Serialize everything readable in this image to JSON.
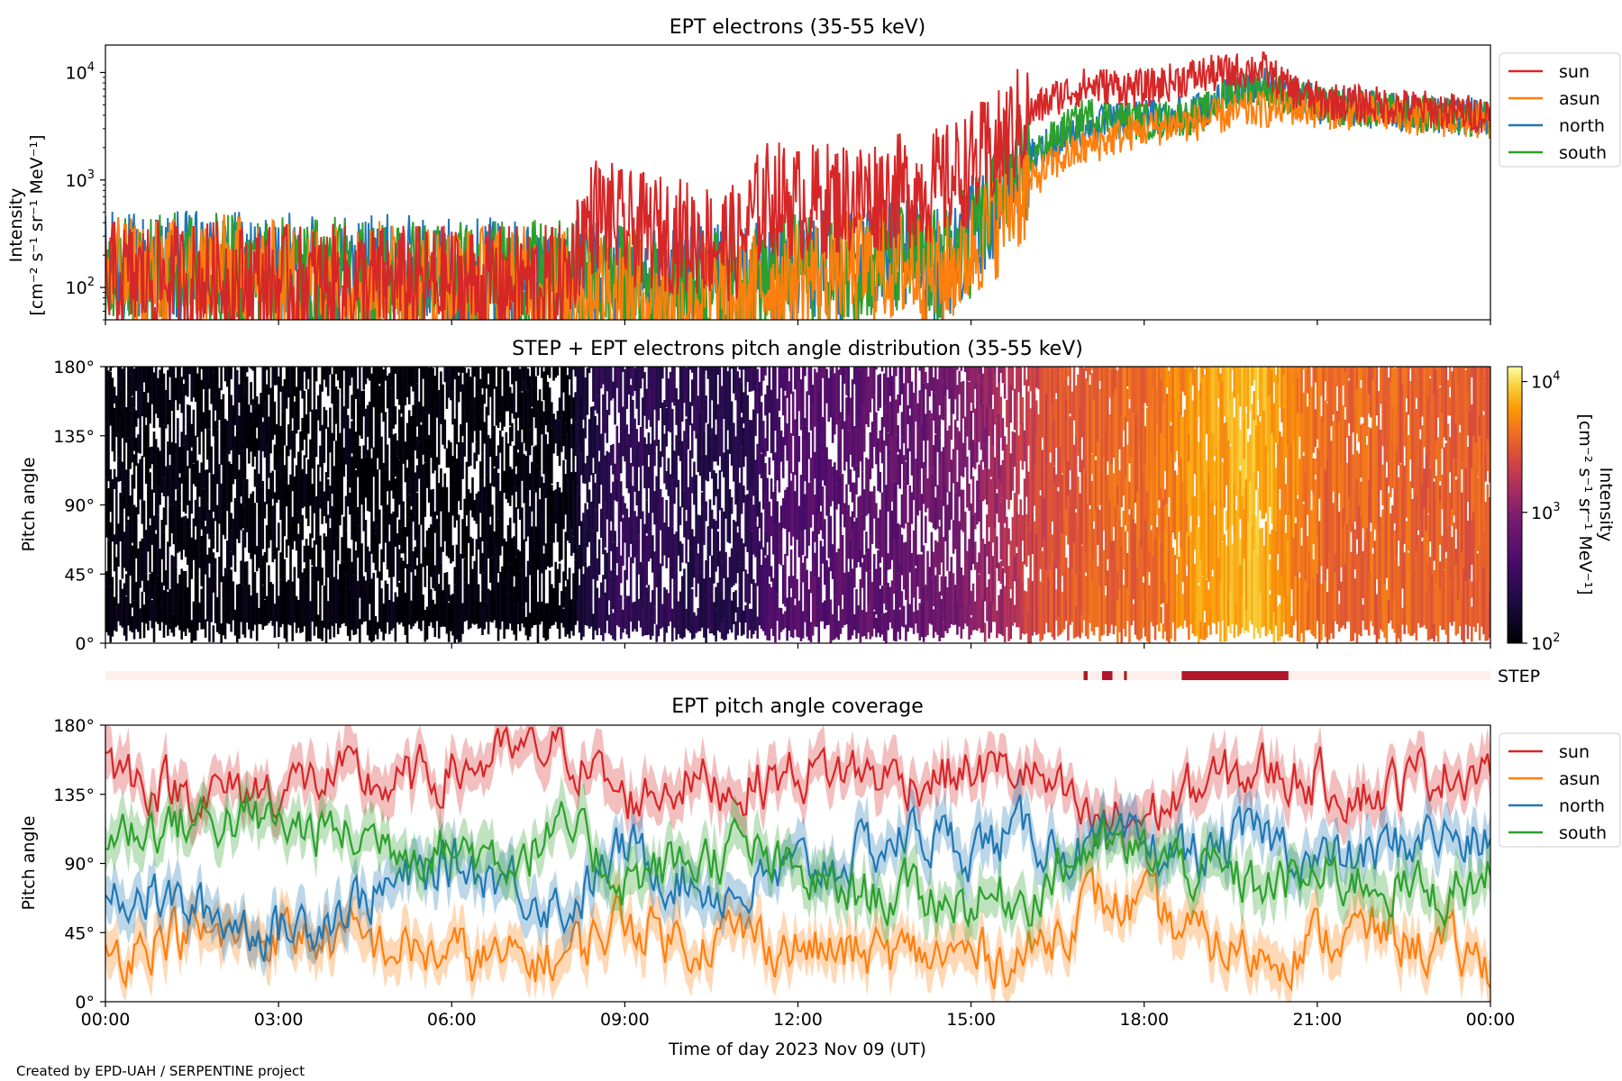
{
  "footer": "Created by EPD-UAH / SERPENTINE project",
  "xlabel": "Time of day 2023 Nov 09 (UT)",
  "x_ticks": [
    "00:00",
    "03:00",
    "06:00",
    "09:00",
    "12:00",
    "15:00",
    "18:00",
    "21:00",
    "00:00"
  ],
  "colors": {
    "sun": "#d62728",
    "asun": "#ff7f0e",
    "north": "#1f77b4",
    "south": "#2ca02c",
    "step_bar": "#b2182b",
    "step_bg": "#fdf0ea"
  },
  "chart_data": [
    {
      "type": "line",
      "title": "EPT electrons (35-55 keV)",
      "ylabel": [
        "Intensity",
        "[cm⁻² s⁻¹ sr⁻¹ MeV⁻¹]"
      ],
      "yscale": "log",
      "ylim": [
        50,
        18000
      ],
      "y_ticks": [
        {
          "v": 100,
          "base": "10",
          "exp": "2"
        },
        {
          "v": 1000,
          "base": "10",
          "exp": "3"
        },
        {
          "v": 10000,
          "base": "10",
          "exp": "4"
        }
      ],
      "xlim_hours": [
        0,
        24
      ],
      "legend_position": "outside-right",
      "legend": [
        "sun",
        "asun",
        "north",
        "south"
      ],
      "series": [
        {
          "name": "north",
          "x": [
            0,
            1,
            2,
            3,
            4,
            5,
            6,
            7,
            8,
            8.5,
            9,
            10,
            11,
            11.5,
            12,
            13,
            14,
            14.5,
            15,
            15.5,
            16,
            16.5,
            17,
            17.5,
            18,
            19,
            19.5,
            20,
            20.5,
            21,
            22,
            23,
            24
          ],
          "y": [
            150,
            150,
            150,
            140,
            140,
            140,
            130,
            130,
            120,
            120,
            120,
            110,
            110,
            130,
            150,
            170,
            200,
            150,
            300,
            700,
            1500,
            2500,
            3000,
            3500,
            3800,
            4500,
            6000,
            8000,
            6500,
            5000,
            4500,
            4000,
            3800
          ]
        },
        {
          "name": "south",
          "x": [
            0,
            1,
            2,
            3,
            4,
            5,
            6,
            7,
            8,
            8.5,
            9,
            10,
            11,
            11.5,
            12,
            13,
            14,
            14.5,
            15,
            15.5,
            16,
            16.5,
            17,
            17.5,
            18,
            19,
            19.5,
            20,
            20.5,
            21,
            22,
            23,
            24
          ],
          "y": [
            140,
            140,
            140,
            130,
            130,
            130,
            120,
            120,
            120,
            110,
            110,
            100,
            100,
            120,
            140,
            160,
            190,
            140,
            280,
            650,
            1400,
            2600,
            4000,
            3800,
            3500,
            4000,
            6500,
            7500,
            6000,
            5000,
            4500,
            4000,
            3800
          ]
        },
        {
          "name": "asun",
          "x": [
            0,
            1,
            2,
            3,
            4,
            5,
            6,
            7,
            8,
            8.5,
            9,
            10,
            11,
            11.5,
            12,
            13,
            14,
            14.5,
            15,
            15.5,
            16,
            16.5,
            17,
            17.5,
            18,
            19,
            19.5,
            20,
            20.5,
            21,
            22,
            23,
            24
          ],
          "y": [
            130,
            130,
            140,
            120,
            120,
            120,
            110,
            110,
            100,
            110,
            90,
            80,
            80,
            110,
            130,
            150,
            160,
            120,
            220,
            450,
            900,
            1500,
            2000,
            2500,
            3000,
            3500,
            4200,
            4500,
            4800,
            4500,
            4200,
            3800,
            3500
          ]
        },
        {
          "name": "sun",
          "x": [
            0,
            1,
            2,
            3,
            4,
            5,
            6,
            7,
            8,
            8.5,
            9,
            10,
            11,
            11.5,
            12,
            13,
            14,
            14.5,
            15,
            15.5,
            16,
            16.5,
            17,
            17.5,
            18,
            19,
            19.5,
            20,
            20.5,
            21,
            22,
            23,
            24
          ],
          "y": [
            120,
            120,
            120,
            110,
            110,
            110,
            110,
            110,
            110,
            500,
            350,
            300,
            250,
            700,
            600,
            700,
            800,
            900,
            1300,
            2000,
            4000,
            6000,
            7500,
            7500,
            7000,
            9500,
            10000,
            11000,
            7000,
            5500,
            5000,
            4500,
            4000
          ]
        }
      ]
    },
    {
      "type": "heatmap",
      "title": "STEP + EPT electrons pitch angle distribution (35-55 keV)",
      "ylabel": "Pitch angle",
      "y_ticks": [
        "0°",
        "45°",
        "90°",
        "135°",
        "180°"
      ],
      "ylim": [
        0,
        180
      ],
      "xlim_hours": [
        0,
        24
      ],
      "colorbar": {
        "label": [
          "Intensity",
          "[cm⁻² s⁻¹ sr⁻¹ MeV⁻¹]"
        ],
        "scale": "log",
        "range": [
          100,
          13000
        ],
        "ticks": [
          {
            "v": 100,
            "base": "10",
            "exp": "2"
          },
          {
            "v": 1000,
            "base": "10",
            "exp": "3"
          },
          {
            "v": 10000,
            "base": "10",
            "exp": "4"
          }
        ],
        "colormap": "inferno"
      },
      "intensity_profile": {
        "x": [
          0,
          2,
          4,
          6,
          8,
          8.8,
          10,
          11,
          11.8,
          13,
          14,
          15,
          15.5,
          16,
          16.5,
          17,
          18,
          19,
          20,
          20.5,
          21,
          22,
          23,
          24
        ],
        "y": [
          110,
          110,
          105,
          105,
          110,
          300,
          260,
          220,
          500,
          550,
          650,
          900,
          1400,
          2200,
          3000,
          3500,
          3800,
          6000,
          8000,
          5500,
          3800,
          3600,
          3400,
          3300
        ]
      }
    },
    {
      "type": "bar",
      "title": "",
      "label": "STEP",
      "coverage_intervals_hours": [
        [
          16.95,
          17.02
        ],
        [
          17.27,
          17.45
        ],
        [
          17.65,
          17.7
        ],
        [
          18.65,
          20.5
        ]
      ]
    },
    {
      "type": "area",
      "title": "EPT pitch angle coverage",
      "ylabel": "Pitch angle",
      "y_ticks": [
        "0°",
        "45°",
        "90°",
        "135°",
        "180°"
      ],
      "ylim": [
        0,
        180
      ],
      "xlim_hours": [
        0,
        24
      ],
      "legend_position": "outside-right",
      "legend": [
        "sun",
        "asun",
        "north",
        "south"
      ],
      "series": [
        {
          "name": "sun",
          "x": [
            0,
            1,
            2,
            3,
            4,
            5,
            6,
            7,
            8,
            9,
            10,
            11,
            12,
            13,
            14,
            15,
            16,
            17,
            18,
            19,
            20,
            21,
            22,
            23,
            24
          ],
          "y": [
            155,
            140,
            135,
            140,
            145,
            140,
            150,
            160,
            165,
            130,
            145,
            140,
            150,
            150,
            145,
            150,
            150,
            115,
            120,
            140,
            150,
            145,
            135,
            150,
            155
          ]
        },
        {
          "name": "asun",
          "x": [
            0,
            1,
            2,
            3,
            4,
            5,
            6,
            7,
            8,
            9,
            10,
            11,
            12,
            13,
            14,
            15,
            16,
            17,
            18,
            19,
            20,
            21,
            22,
            23,
            24
          ],
          "y": [
            30,
            45,
            40,
            45,
            40,
            35,
            30,
            25,
            30,
            55,
            40,
            45,
            35,
            30,
            30,
            30,
            30,
            65,
            60,
            40,
            30,
            40,
            45,
            35,
            25
          ]
        },
        {
          "name": "north",
          "x": [
            0,
            1,
            2,
            3,
            4,
            5,
            6,
            7,
            8,
            9,
            10,
            11,
            12,
            13,
            14,
            15,
            16,
            17,
            18,
            19,
            20,
            21,
            22,
            23,
            24
          ],
          "y": [
            80,
            65,
            55,
            45,
            60,
            75,
            90,
            80,
            60,
            100,
            80,
            70,
            85,
            95,
            110,
            100,
            110,
            95,
            100,
            95,
            110,
            90,
            95,
            110,
            100
          ]
        },
        {
          "name": "south",
          "x": [
            0,
            1,
            2,
            3,
            4,
            5,
            6,
            7,
            8,
            9,
            10,
            11,
            12,
            13,
            14,
            15,
            16,
            17,
            18,
            19,
            20,
            21,
            22,
            23,
            24
          ],
          "y": [
            110,
            115,
            120,
            115,
            110,
            105,
            100,
            95,
            110,
            80,
            90,
            100,
            80,
            70,
            70,
            65,
            70,
            100,
            95,
            85,
            75,
            80,
            80,
            70,
            80
          ]
        }
      ]
    }
  ]
}
